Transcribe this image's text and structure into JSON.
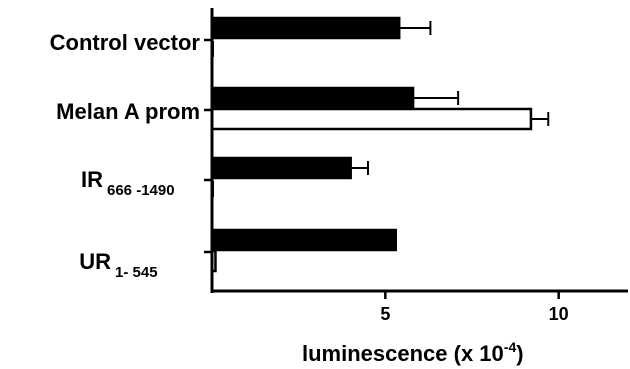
{
  "chart_data": {
    "type": "bar",
    "orientation": "horizontal",
    "categories": [
      {
        "main": "Control vector",
        "sub": ""
      },
      {
        "main": "Melan A prom",
        "sub": ""
      },
      {
        "main": "IR",
        "sub": "666 -1490"
      },
      {
        "main": "UR",
        "sub": "1- 545"
      }
    ],
    "series": [
      {
        "color": "#000000",
        "values": [
          5.4,
          5.8,
          4.0,
          5.3
        ],
        "errors": [
          0.9,
          1.3,
          0.5,
          0.0
        ]
      },
      {
        "color": "#ffffff",
        "values": [
          0.0,
          9.2,
          0.0,
          0.1
        ],
        "errors": [
          0.0,
          0.5,
          0.0,
          0.0
        ]
      }
    ],
    "xlabel": {
      "main": "luminescence (x 10",
      "sup": "-4",
      "end": ")"
    },
    "xticks": [
      5,
      10
    ],
    "xlim": [
      0,
      12
    ],
    "grid": false
  }
}
